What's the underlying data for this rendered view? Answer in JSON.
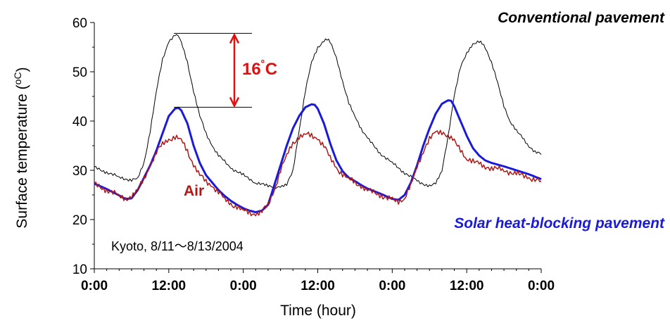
{
  "chart_data": {
    "type": "line",
    "xlabel": "Time  (hour)",
    "ylabel": "Surface temperature  (",
    "ylabel_unit": "oC",
    "ylabel_close": ")",
    "ylim": [
      10,
      60
    ],
    "yticks": [
      "10",
      "20",
      "30",
      "40",
      "50",
      "60"
    ],
    "xlim": [
      0,
      72
    ],
    "xticks": [
      {
        "x": 0,
        "label": "0:00"
      },
      {
        "x": 12,
        "label": "12:00"
      },
      {
        "x": 24,
        "label": "0:00"
      },
      {
        "x": 36,
        "label": "12:00"
      },
      {
        "x": 48,
        "label": "0:00"
      },
      {
        "x": 60,
        "label": "12:00"
      },
      {
        "x": 72,
        "label": "0:00"
      }
    ],
    "x_unit": "hours since 8/11 0:00",
    "note": "Kyoto, 8/11～8/13/2004",
    "series": [
      {
        "name": "Conventional pavement",
        "color": "#000000",
        "points": [
          [
            0,
            30.6
          ],
          [
            2,
            29.6
          ],
          [
            4,
            28.6
          ],
          [
            6,
            28.0
          ],
          [
            7,
            28.3
          ],
          [
            8,
            31.5
          ],
          [
            9,
            38
          ],
          [
            10,
            46
          ],
          [
            11,
            52.5
          ],
          [
            12,
            56.2
          ],
          [
            13,
            57.5
          ],
          [
            13.5,
            57.3
          ],
          [
            14,
            56
          ],
          [
            15,
            52
          ],
          [
            16,
            46
          ],
          [
            17,
            41
          ],
          [
            18,
            37.5
          ],
          [
            19,
            35
          ],
          [
            20,
            33
          ],
          [
            22,
            30.5
          ],
          [
            24,
            29
          ],
          [
            26,
            27.5
          ],
          [
            28,
            26.8
          ],
          [
            30,
            26.6
          ],
          [
            31,
            27
          ],
          [
            32,
            30
          ],
          [
            33,
            38
          ],
          [
            34,
            46
          ],
          [
            35,
            52
          ],
          [
            36,
            55
          ],
          [
            37,
            56.2
          ],
          [
            37.5,
            56.5
          ],
          [
            38,
            56
          ],
          [
            39,
            53
          ],
          [
            40,
            48
          ],
          [
            41,
            43.5
          ],
          [
            42,
            41
          ],
          [
            43,
            38.5
          ],
          [
            44,
            36.5
          ],
          [
            46,
            33.5
          ],
          [
            48,
            31.5
          ],
          [
            50,
            29.5
          ],
          [
            52,
            27.8
          ],
          [
            54,
            26.8
          ],
          [
            55,
            27.2
          ],
          [
            56,
            30
          ],
          [
            57,
            37
          ],
          [
            58,
            45
          ],
          [
            59,
            51
          ],
          [
            60,
            54
          ],
          [
            61,
            55.5
          ],
          [
            62,
            56
          ],
          [
            62.5,
            55.8
          ],
          [
            63,
            55
          ],
          [
            64,
            52
          ],
          [
            65,
            47.5
          ],
          [
            66,
            43
          ],
          [
            67,
            40
          ],
          [
            68,
            38
          ],
          [
            69,
            36.5
          ],
          [
            70,
            35
          ],
          [
            71,
            33.8
          ],
          [
            72,
            33.2
          ]
        ]
      },
      {
        "name": "Solar heat-blocking pavement",
        "color": "#1a1adb",
        "points": [
          [
            0,
            27.3
          ],
          [
            2,
            26.2
          ],
          [
            4,
            24.9
          ],
          [
            5,
            24.2
          ],
          [
            6,
            24.3
          ],
          [
            7,
            26
          ],
          [
            8,
            28.5
          ],
          [
            9,
            31
          ],
          [
            10,
            34
          ],
          [
            11,
            37.5
          ],
          [
            12,
            41
          ],
          [
            13,
            42.5
          ],
          [
            13.5,
            42.7
          ],
          [
            14,
            42.2
          ],
          [
            15,
            39.5
          ],
          [
            16,
            35
          ],
          [
            17,
            31.5
          ],
          [
            18,
            29
          ],
          [
            19,
            27.5
          ],
          [
            20,
            26
          ],
          [
            21,
            24.8
          ],
          [
            22,
            23.8
          ],
          [
            23,
            23
          ],
          [
            24,
            22.3
          ],
          [
            25,
            21.8
          ],
          [
            26,
            21.5
          ],
          [
            27,
            21.8
          ],
          [
            28,
            23
          ],
          [
            29,
            27
          ],
          [
            30,
            31
          ],
          [
            31,
            35
          ],
          [
            32,
            38.5
          ],
          [
            33,
            41
          ],
          [
            34,
            42.8
          ],
          [
            35,
            43.4
          ],
          [
            35.5,
            43.3
          ],
          [
            36,
            42.5
          ],
          [
            37,
            39.5
          ],
          [
            38,
            35.5
          ],
          [
            39,
            32
          ],
          [
            40,
            29.8
          ],
          [
            41,
            28.5
          ],
          [
            42,
            27.8
          ],
          [
            43,
            27
          ],
          [
            44,
            26.3
          ],
          [
            46,
            25.3
          ],
          [
            48,
            24.2
          ],
          [
            49,
            24
          ],
          [
            50,
            25
          ],
          [
            51,
            27.5
          ],
          [
            52,
            31
          ],
          [
            53,
            35
          ],
          [
            54,
            38.5
          ],
          [
            55,
            41.5
          ],
          [
            56,
            43.5
          ],
          [
            57,
            44.2
          ],
          [
            57.5,
            44.1
          ],
          [
            58,
            43
          ],
          [
            59,
            40
          ],
          [
            60,
            37
          ],
          [
            61,
            34.5
          ],
          [
            62,
            33
          ],
          [
            63,
            32
          ],
          [
            64,
            31.5
          ],
          [
            66,
            30.8
          ],
          [
            68,
            30
          ],
          [
            70,
            29.2
          ],
          [
            72,
            28.2
          ]
        ]
      },
      {
        "name": "Air",
        "color": "#b01818",
        "points": [
          [
            0,
            27.2
          ],
          [
            2,
            26
          ],
          [
            4,
            24.8
          ],
          [
            5,
            24.3
          ],
          [
            6,
            24.5
          ],
          [
            7,
            26
          ],
          [
            8,
            28.5
          ],
          [
            9,
            31
          ],
          [
            10,
            33.5
          ],
          [
            11,
            35.5
          ],
          [
            12,
            36.3
          ],
          [
            13,
            36.6
          ],
          [
            14,
            36.2
          ],
          [
            15,
            34
          ],
          [
            16,
            31
          ],
          [
            17,
            29
          ],
          [
            18,
            27.8
          ],
          [
            19,
            26.8
          ],
          [
            20,
            25.5
          ],
          [
            21,
            24.2
          ],
          [
            22,
            23.2
          ],
          [
            23,
            22.5
          ],
          [
            24,
            21.8
          ],
          [
            25,
            21.4
          ],
          [
            26,
            21.1
          ],
          [
            27,
            21.6
          ],
          [
            28,
            23
          ],
          [
            29,
            26
          ],
          [
            30,
            30
          ],
          [
            31,
            33
          ],
          [
            32,
            35.5
          ],
          [
            33,
            36.8
          ],
          [
            34,
            37.3
          ],
          [
            35,
            37
          ],
          [
            36,
            36.5
          ],
          [
            37,
            35
          ],
          [
            38,
            32.5
          ],
          [
            39,
            30.5
          ],
          [
            40,
            29.2
          ],
          [
            41,
            28.2
          ],
          [
            42,
            27.5
          ],
          [
            43,
            26.8
          ],
          [
            44,
            26
          ],
          [
            46,
            25
          ],
          [
            48,
            24
          ],
          [
            49,
            23.6
          ],
          [
            50,
            24.5
          ],
          [
            51,
            27
          ],
          [
            52,
            30.5
          ],
          [
            53,
            34
          ],
          [
            54,
            36.5
          ],
          [
            55,
            37.5
          ],
          [
            56,
            37.8
          ],
          [
            57,
            37.2
          ],
          [
            58,
            35.8
          ],
          [
            59,
            34
          ],
          [
            60,
            32.5
          ],
          [
            61,
            31.8
          ],
          [
            62,
            31.2
          ],
          [
            63,
            30.8
          ],
          [
            64,
            30.5
          ],
          [
            66,
            30
          ],
          [
            68,
            29.3
          ],
          [
            70,
            28.5
          ],
          [
            72,
            27.8
          ]
        ]
      }
    ],
    "annotation": {
      "label": "16",
      "degree": "˚",
      "unit": "C",
      "from": 42.8,
      "to": 57.8,
      "color": "#e01010"
    }
  }
}
